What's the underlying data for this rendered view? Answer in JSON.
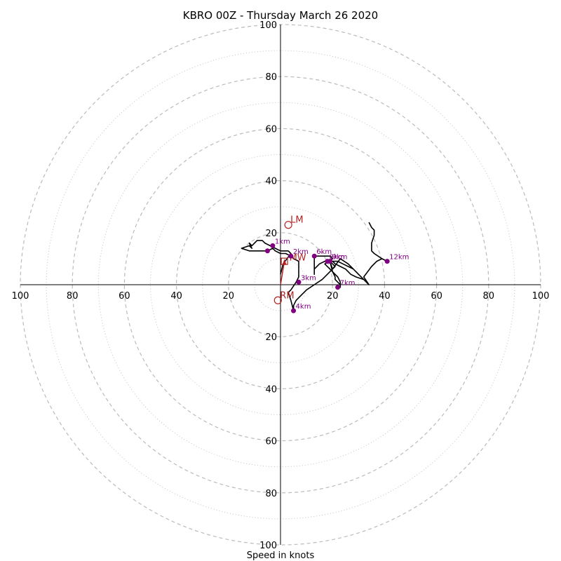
{
  "chart_data": {
    "type": "hodograph",
    "title": "KBRO 00Z - Thursday March 26 2020",
    "xlabel": "Speed in knots",
    "max_speed": 100,
    "ring_interval_dashed": 20,
    "ring_interval_dotted": 10,
    "tick_labels": [
      "20",
      "40",
      "60",
      "80",
      "100"
    ],
    "grid": true,
    "colors": {
      "trace": "#000000",
      "height_marker": "#800080",
      "motion": "#b22222",
      "grid": "#bbbbbb",
      "axes": "#000000"
    },
    "hodograph_trace": [
      [
        0,
        4
      ],
      [
        1,
        8
      ],
      [
        4,
        12
      ],
      [
        3,
        13
      ],
      [
        0,
        13
      ],
      [
        -2,
        14
      ],
      [
        -4,
        15
      ],
      [
        -6,
        16
      ],
      [
        -7,
        17
      ],
      [
        -9,
        17
      ],
      [
        -11,
        15
      ],
      [
        -12,
        16
      ],
      [
        -11,
        14
      ],
      [
        -12,
        15
      ],
      [
        -15,
        14
      ],
      [
        -12,
        13
      ],
      [
        -8,
        13
      ],
      [
        -5,
        13
      ],
      [
        -3,
        14
      ],
      [
        -2,
        13
      ],
      [
        0,
        12
      ],
      [
        2,
        12
      ],
      [
        4,
        11
      ],
      [
        5,
        10
      ],
      [
        7,
        9
      ],
      [
        7,
        5
      ],
      [
        7,
        3
      ],
      [
        6,
        1
      ],
      [
        4,
        -2
      ],
      [
        3,
        -3
      ],
      [
        4,
        -6
      ],
      [
        5,
        -10
      ],
      [
        5,
        -8
      ],
      [
        6,
        -6
      ],
      [
        8,
        -4
      ],
      [
        10,
        -2
      ],
      [
        13,
        0
      ],
      [
        16,
        2
      ],
      [
        18,
        4
      ],
      [
        20,
        6
      ],
      [
        21,
        7
      ],
      [
        20,
        8
      ],
      [
        19,
        9
      ],
      [
        18,
        9
      ],
      [
        17,
        9
      ],
      [
        15,
        8
      ],
      [
        13,
        6
      ],
      [
        13,
        4
      ],
      [
        13,
        8
      ],
      [
        13,
        11
      ],
      [
        15,
        11
      ],
      [
        17,
        11
      ],
      [
        18,
        11
      ],
      [
        19,
        11
      ],
      [
        20,
        10
      ],
      [
        19,
        9
      ],
      [
        20,
        9
      ],
      [
        22,
        9
      ],
      [
        24,
        8
      ],
      [
        26,
        7
      ],
      [
        28,
        6
      ],
      [
        29,
        5
      ],
      [
        30,
        4
      ],
      [
        32,
        2
      ],
      [
        34,
        0
      ],
      [
        32,
        2
      ],
      [
        30,
        4
      ],
      [
        28,
        6
      ],
      [
        26,
        8
      ],
      [
        23,
        10
      ],
      [
        20,
        6
      ],
      [
        19,
        9
      ],
      [
        20,
        5
      ],
      [
        22,
        3
      ],
      [
        23,
        1
      ],
      [
        23,
        -1
      ],
      [
        23,
        0
      ],
      [
        22,
        1
      ],
      [
        21,
        2
      ],
      [
        21,
        3
      ],
      [
        20,
        5
      ],
      [
        19,
        6
      ],
      [
        17,
        8
      ],
      [
        19,
        9
      ],
      [
        20,
        9
      ],
      [
        21,
        8
      ],
      [
        23,
        7
      ],
      [
        25,
        6
      ],
      [
        26,
        5
      ],
      [
        27,
        4
      ],
      [
        29,
        3
      ],
      [
        32,
        2
      ],
      [
        34,
        0
      ],
      [
        32,
        3
      ],
      [
        35,
        7
      ],
      [
        37,
        9
      ],
      [
        39,
        10
      ],
      [
        41,
        9
      ],
      [
        39,
        10
      ],
      [
        36,
        12
      ],
      [
        35,
        13
      ],
      [
        35,
        16
      ],
      [
        36,
        19
      ],
      [
        36,
        21
      ],
      [
        35,
        22
      ],
      [
        34,
        24
      ]
    ],
    "height_markers": [
      {
        "label": "1km",
        "u": -3,
        "v": 15
      },
      {
        "label": "2km",
        "u": 4,
        "v": 11
      },
      {
        "label": "3km",
        "u": 7,
        "v": 1
      },
      {
        "label": "4km",
        "u": 5,
        "v": -10
      },
      {
        "label": "6km",
        "u": 13,
        "v": 11
      },
      {
        "label": "7km",
        "u": 22,
        "v": -1
      },
      {
        "label": "8km",
        "u": 18,
        "v": 9
      },
      {
        "label": "9km",
        "u": 19,
        "v": 9
      },
      {
        "label": "12km",
        "u": 41,
        "v": 9
      }
    ],
    "extra_marker": {
      "u": -5,
      "v": 13
    },
    "storm_motion": [
      {
        "label": "LM",
        "u": 3,
        "v": 23
      },
      {
        "label": "RM",
        "u": -1,
        "v": -6
      }
    ],
    "mean_wind": {
      "label": "MW",
      "u": 1.5,
      "v": 9
    }
  }
}
